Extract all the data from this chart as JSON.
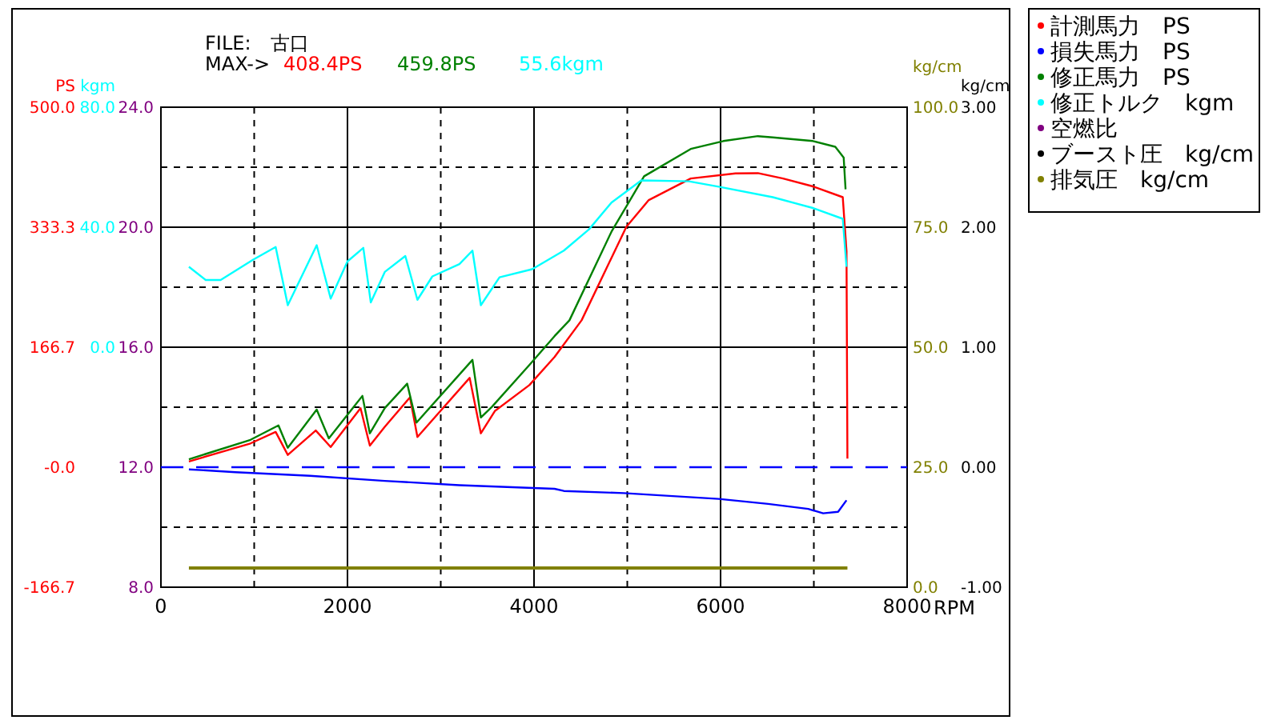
{
  "chart_data": {
    "type": "line",
    "xlabel": "RPM",
    "ylabel": "PS",
    "y2label": "kgm",
    "y3label": "kg/cm",
    "annotations": [
      "FILE:　古口",
      "MAX->",
      "408.4PS",
      "459.8PS",
      "55.6kgm",
      "kg/cm",
      "24.0",
      "20.0",
      "16.0",
      "12.0",
      "8.0",
      "3.00",
      "2.00",
      "1.00",
      "0.00",
      "-1.00"
    ],
    "xlim": [
      0,
      8000
    ],
    "xticks": [
      0,
      2000,
      4000,
      6000,
      8000
    ],
    "ylim": [
      -166.7,
      500
    ],
    "yticks": [
      {
        "value": 500,
        "label": "500.0"
      },
      {
        "value": 333.3,
        "label": "333.3"
      },
      {
        "value": 166.7,
        "label": "166.7"
      },
      {
        "value": 0,
        "label": "-0.0"
      },
      {
        "value": -166.7,
        "label": "-166.7"
      }
    ],
    "y2lim": [
      -80,
      80
    ],
    "y2ticks": [
      {
        "value": 80,
        "label": "80.0"
      },
      {
        "value": 40,
        "label": "40.0"
      },
      {
        "value": 0,
        "label": "0.0"
      }
    ],
    "y3lim": [
      0,
      100
    ],
    "y3ticks": [
      {
        "value": 100,
        "label": "100.0"
      },
      {
        "value": 75,
        "label": "75.0"
      },
      {
        "value": 50,
        "label": "50.0"
      },
      {
        "value": 25,
        "label": "25.0"
      },
      {
        "value": 0,
        "label": "0.0"
      }
    ],
    "grid": true,
    "legend": "right",
    "marker": "none",
    "line_style": "solid",
    "ref_lines": [
      {
        "axis": "y",
        "value": 0,
        "color": "#0000ff",
        "line_style": "dashed"
      }
    ],
    "series": [
      {
        "name": "計測馬力　PS",
        "color": "#ff0000",
        "x": [
          300,
          960,
          1230,
          1360,
          1660,
          1820,
          2140,
          2240,
          2400,
          2670,
          2750,
          3310,
          3430,
          3580,
          3950,
          4220,
          4510,
          4990,
          5230,
          5680,
          6160,
          6400,
          6670,
          6990,
          7310,
          7350,
          7360
        ],
        "values": [
          8,
          33,
          49,
          17,
          51,
          28,
          82,
          30,
          56,
          97,
          42,
          124,
          47,
          78,
          114,
          153,
          204,
          334,
          371,
          401,
          408,
          408.4,
          401,
          390,
          375,
          300,
          12
        ]
      },
      {
        "name": "損失馬力　PS",
        "color": "#0000ff",
        "x": [
          300,
          800,
          1600,
          2400,
          3200,
          4220,
          4320,
          4960,
          5980,
          6510,
          6940,
          7100,
          7260,
          7350
        ],
        "values": [
          -3,
          -7,
          -12,
          -19,
          -25,
          -30,
          -33,
          -36,
          -44,
          -51,
          -58,
          -64,
          -62,
          -46
        ]
      },
      {
        "name": "修正馬力　PS",
        "color": "#008000",
        "x": [
          300,
          960,
          1260,
          1360,
          1670,
          1800,
          2160,
          2240,
          2400,
          2640,
          2740,
          3340,
          3430,
          3550,
          3950,
          4220,
          4380,
          4830,
          5180,
          5680,
          6030,
          6400,
          6560,
          6990,
          7230,
          7320,
          7340
        ],
        "values": [
          11,
          38,
          58,
          27,
          80,
          40,
          99,
          47,
          82,
          116,
          62,
          149,
          69,
          84,
          142,
          182,
          204,
          327,
          404,
          442,
          453,
          459.8,
          458,
          453,
          445,
          430,
          386
        ]
      },
      {
        "name": "修正トルク　kgm",
        "color": "#00ffff",
        "axis": "y2",
        "x": [
          300,
          480,
          640,
          990,
          1230,
          1360,
          1670,
          1820,
          2000,
          2170,
          2250,
          2400,
          2620,
          2750,
          2910,
          3200,
          3340,
          3430,
          3630,
          3980,
          4320,
          4590,
          4830,
          5150,
          5660,
          5980,
          6560,
          6990,
          7310,
          7350
        ],
        "values": [
          26.8,
          22.4,
          22.4,
          29.2,
          33.4,
          14.0,
          34.0,
          16.2,
          28.6,
          33.1,
          14.9,
          25.1,
          30.4,
          15.8,
          23.6,
          27.7,
          32.2,
          14.0,
          23.3,
          26.0,
          32.2,
          39.3,
          48.2,
          55.6,
          55.3,
          53.5,
          50.0,
          46.4,
          42.8,
          26.8
        ]
      },
      {
        "name": "空燃比",
        "color": "#800080"
      },
      {
        "name": "ブースト圧　kg/cm",
        "color": "#000000"
      },
      {
        "name": "排気圧　kg/cm",
        "color": "#808000",
        "axis": "y3",
        "x": [
          300,
          7360
        ],
        "values": [
          4,
          4
        ]
      }
    ]
  }
}
